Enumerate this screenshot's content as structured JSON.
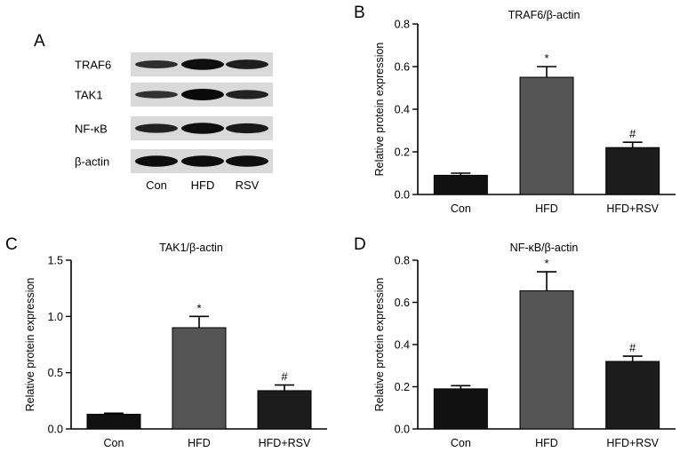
{
  "panels": {
    "a": {
      "letter": "A",
      "blots": [
        {
          "label": "TRAF6",
          "intensity": [
            0.55,
            0.95,
            0.75
          ]
        },
        {
          "label": "TAK1",
          "intensity": [
            0.5,
            1.0,
            0.7
          ]
        },
        {
          "label": "NF-κB",
          "intensity": [
            0.7,
            0.95,
            0.8
          ]
        },
        {
          "label": "β-actin",
          "intensity": [
            0.95,
            0.95,
            0.95
          ]
        }
      ],
      "lanes": [
        "Con",
        "HFD",
        "RSV"
      ]
    },
    "b": {
      "letter": "B"
    },
    "c": {
      "letter": "C"
    },
    "d": {
      "letter": "D"
    }
  },
  "chart_data": [
    {
      "type": "bar",
      "panel": "B",
      "title": "TRAF6/β-actin",
      "ylabel": "Relative protein expression",
      "categories": [
        "Con",
        "HFD",
        "HFD+RSV"
      ],
      "values": [
        0.09,
        0.55,
        0.22
      ],
      "errors": [
        0.01,
        0.05,
        0.025
      ],
      "annotations": [
        "",
        "*",
        "#"
      ],
      "ylim": [
        0,
        0.8
      ],
      "yticks": [
        "0.0",
        "0.2",
        "0.4",
        "0.6",
        "0.8"
      ],
      "colors": [
        "#111111",
        "#555555",
        "#1c1c1c"
      ]
    },
    {
      "type": "bar",
      "panel": "C",
      "title": "TAK1/β-actin",
      "ylabel": "Relative protein expression",
      "categories": [
        "Con",
        "HFD",
        "HFD+RSV"
      ],
      "values": [
        0.13,
        0.9,
        0.34
      ],
      "errors": [
        0.01,
        0.1,
        0.05
      ],
      "annotations": [
        "",
        "*",
        "#"
      ],
      "ylim": [
        0,
        1.5
      ],
      "yticks": [
        "0.0",
        "0.5",
        "1.0",
        "1.5"
      ],
      "colors": [
        "#111111",
        "#555555",
        "#1c1c1c"
      ]
    },
    {
      "type": "bar",
      "panel": "D",
      "title": "NF-κB/β-actin",
      "ylabel": "Relative protein expression",
      "categories": [
        "Con",
        "HFD",
        "HFD+RSV"
      ],
      "values": [
        0.19,
        0.655,
        0.32
      ],
      "errors": [
        0.015,
        0.09,
        0.025
      ],
      "annotations": [
        "",
        "*",
        "#"
      ],
      "ylim": [
        0,
        0.8
      ],
      "yticks": [
        "0.0",
        "0.2",
        "0.4",
        "0.6",
        "0.8"
      ],
      "colors": [
        "#111111",
        "#555555",
        "#1c1c1c"
      ]
    }
  ]
}
